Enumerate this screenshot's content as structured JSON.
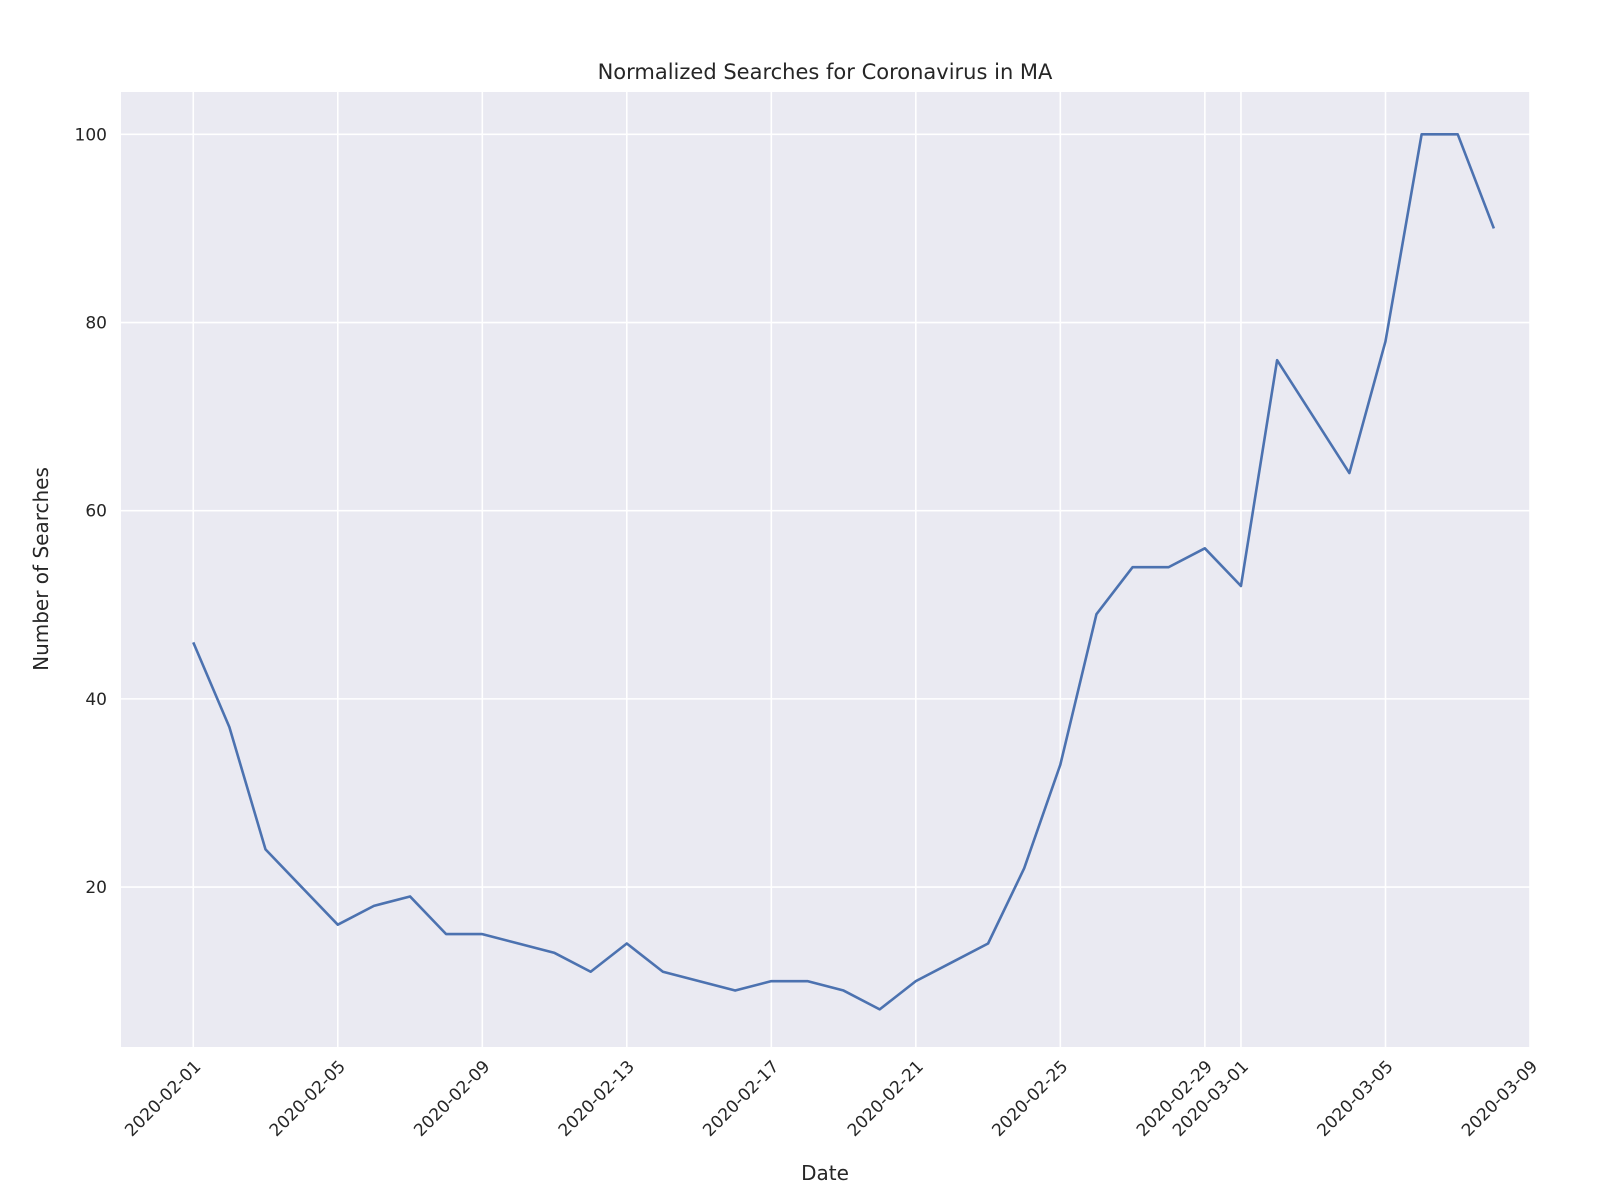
{
  "chart_data": {
    "type": "line",
    "title": "Normalized Searches for Coronavirus in MA",
    "xlabel": "Date",
    "ylabel": "Number of Searches",
    "x_tick_labels": [
      "2020-02-01",
      "2020-02-05",
      "2020-02-09",
      "2020-02-13",
      "2020-02-17",
      "2020-02-21",
      "2020-02-25",
      "2020-02-29",
      "2020-03-01",
      "2020-03-05",
      "2020-03-09"
    ],
    "y_ticks": [
      20,
      40,
      60,
      80,
      100
    ],
    "xlim": [
      "2020-01-30",
      "2020-03-09"
    ],
    "ylim": [
      3,
      104.5
    ],
    "grid": true,
    "colors": {
      "line": "#4c72b0",
      "plot_bg": "#eaeaf2",
      "grid": "#ffffff"
    },
    "series": [
      {
        "x": [
          "2020-02-01",
          "2020-02-02",
          "2020-02-03",
          "2020-02-04",
          "2020-02-05",
          "2020-02-06",
          "2020-02-07",
          "2020-02-08",
          "2020-02-09",
          "2020-02-10",
          "2020-02-11",
          "2020-02-12",
          "2020-02-13",
          "2020-02-14",
          "2020-02-15",
          "2020-02-16",
          "2020-02-17",
          "2020-02-18",
          "2020-02-19",
          "2020-02-20",
          "2020-02-21",
          "2020-02-22",
          "2020-02-23",
          "2020-02-24",
          "2020-02-25",
          "2020-02-26",
          "2020-02-27",
          "2020-02-28",
          "2020-02-29",
          "2020-03-01",
          "2020-03-02",
          "2020-03-03",
          "2020-03-04",
          "2020-03-05",
          "2020-03-06",
          "2020-03-07",
          "2020-03-08"
        ],
        "values": [
          46,
          37,
          24,
          20,
          16,
          18,
          19,
          15,
          15,
          14,
          13,
          11,
          14,
          11,
          10,
          9,
          10,
          10,
          9,
          7,
          10,
          12,
          14,
          22,
          33,
          49,
          54,
          54,
          56,
          52,
          76,
          70,
          64,
          78,
          100,
          100,
          90
        ]
      }
    ]
  }
}
